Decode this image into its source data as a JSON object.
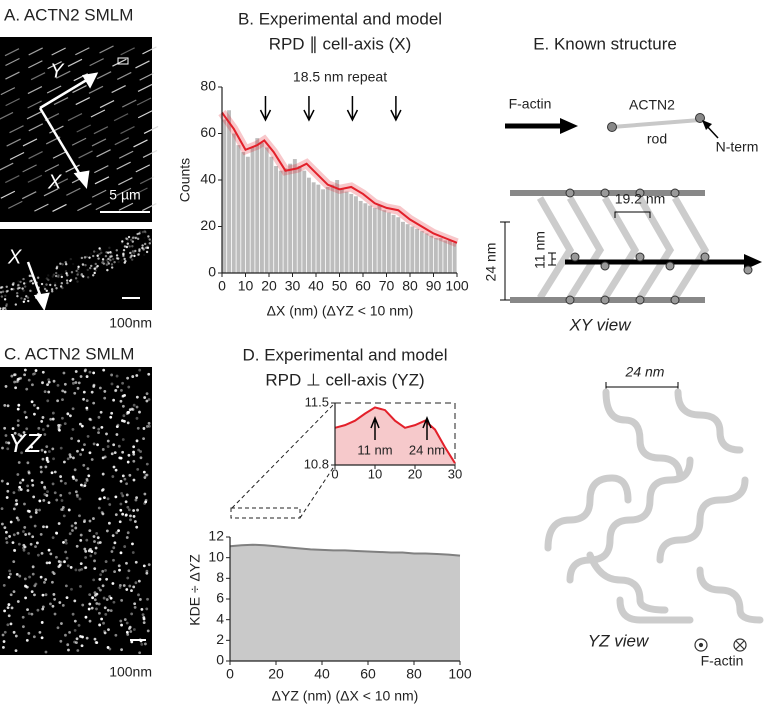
{
  "panel_a": {
    "title": "A. ACTN2 SMLM",
    "axis_y": "Y",
    "axis_x": "X",
    "scale_bar": "5 µm",
    "inset_axis": "X",
    "inset_scale_bar": "100nm"
  },
  "panel_c": {
    "title": "C. ACTN2 SMLM",
    "view": "YZ",
    "scale_bar": "100nm"
  },
  "chart_data": [
    {
      "type": "histogram",
      "title": "B. Experimental and model",
      "subtitle": "RPD ∥ cell-axis (X)",
      "x_label": "ΔX (nm) (ΔYZ < 10 nm)",
      "y_label": "Counts",
      "annotation": "18.5 nm repeat",
      "annotation_arrows_x": [
        18.5,
        37,
        55.5,
        74
      ],
      "bins": [
        0,
        2,
        4,
        6,
        8,
        10,
        12,
        14,
        16,
        18,
        20,
        22,
        24,
        26,
        28,
        30,
        32,
        34,
        36,
        38,
        40,
        42,
        44,
        46,
        48,
        50,
        52,
        54,
        56,
        58,
        60,
        62,
        64,
        66,
        68,
        70,
        72,
        74,
        76,
        78,
        80,
        82,
        84,
        86,
        88,
        90,
        92,
        94,
        96,
        98,
        100
      ],
      "values": [
        66,
        70,
        60,
        55,
        52,
        50,
        54,
        58,
        56,
        54,
        50,
        46,
        44,
        45,
        47,
        49,
        46,
        44,
        41,
        39,
        38,
        36,
        37,
        38,
        40,
        36,
        35,
        34,
        33,
        31,
        30,
        29,
        28,
        29,
        27,
        26,
        25,
        24,
        22,
        21,
        20,
        19,
        18,
        17,
        16,
        15,
        15,
        14,
        14,
        13
      ],
      "color": "#bdbdbd",
      "model": {
        "x": [
          0,
          5,
          10,
          15,
          18,
          22,
          27,
          32,
          36,
          40,
          45,
          50,
          55,
          60,
          65,
          70,
          75,
          80,
          85,
          90,
          95,
          100
        ],
        "values": [
          69,
          62,
          53,
          55,
          57,
          52,
          44,
          45,
          47,
          43,
          38,
          36,
          37,
          34,
          30,
          28,
          27,
          23,
          20,
          17,
          15,
          13
        ],
        "color": "#e3202a"
      },
      "xlim": [
        0,
        100
      ],
      "ylim": [
        0,
        80
      ],
      "xticks": [
        0,
        10,
        20,
        30,
        40,
        50,
        60,
        70,
        80,
        90,
        100
      ],
      "yticks": [
        0,
        20,
        40,
        60,
        80
      ]
    },
    {
      "type": "area",
      "title": "D. Experimental and model",
      "subtitle": "RPD ⊥ cell-axis (YZ)",
      "x_label": "ΔYZ (nm) (ΔX < 10 nm)",
      "y_label": "KDE ÷ ΔYZ",
      "x": [
        0,
        5,
        10,
        15,
        20,
        25,
        30,
        35,
        40,
        45,
        50,
        55,
        60,
        65,
        70,
        75,
        80,
        85,
        90,
        95,
        100
      ],
      "values": [
        11.1,
        11.2,
        11.25,
        11.2,
        11.1,
        11.0,
        10.9,
        10.8,
        10.75,
        10.7,
        10.7,
        10.65,
        10.6,
        10.55,
        10.5,
        10.5,
        10.4,
        10.4,
        10.35,
        10.3,
        10.2
      ],
      "color": "#c9c9c9",
      "line_color": "#808080",
      "xlim": [
        0,
        100
      ],
      "ylim": [
        0,
        12
      ],
      "xticks": [
        0,
        20,
        40,
        60,
        80,
        100
      ],
      "yticks": [
        0,
        2,
        4,
        6,
        8,
        10,
        12
      ]
    },
    {
      "type": "line",
      "x": [
        0,
        2.5,
        5,
        7.5,
        10,
        12.5,
        15,
        17.5,
        20,
        22.5,
        25,
        27.5,
        30
      ],
      "values": [
        11.22,
        11.25,
        11.3,
        11.38,
        11.45,
        11.42,
        11.3,
        11.22,
        11.25,
        11.3,
        11.2,
        11.0,
        10.82
      ],
      "color": "#e3202a",
      "annotations": [
        {
          "x": 10,
          "label": "11 nm"
        },
        {
          "x": 23,
          "label": "24 nm"
        }
      ],
      "xlim": [
        0,
        30
      ],
      "ylim": [
        10.8,
        11.5
      ],
      "xticks": [
        0,
        10,
        20,
        30
      ],
      "yticks": [
        10.8,
        11.5
      ]
    }
  ],
  "panel_e": {
    "title": "E. Known structure",
    "factin": "F-actin",
    "actn2": "ACTN2",
    "rod": "rod",
    "nterm": "N-term",
    "spacing": "19.2 nm",
    "height": "24 nm",
    "gap": "11 nm",
    "xy_view": "XY view",
    "yz_spacing": "24 nm",
    "yz_view": "YZ view",
    "legend": "F-actin"
  }
}
